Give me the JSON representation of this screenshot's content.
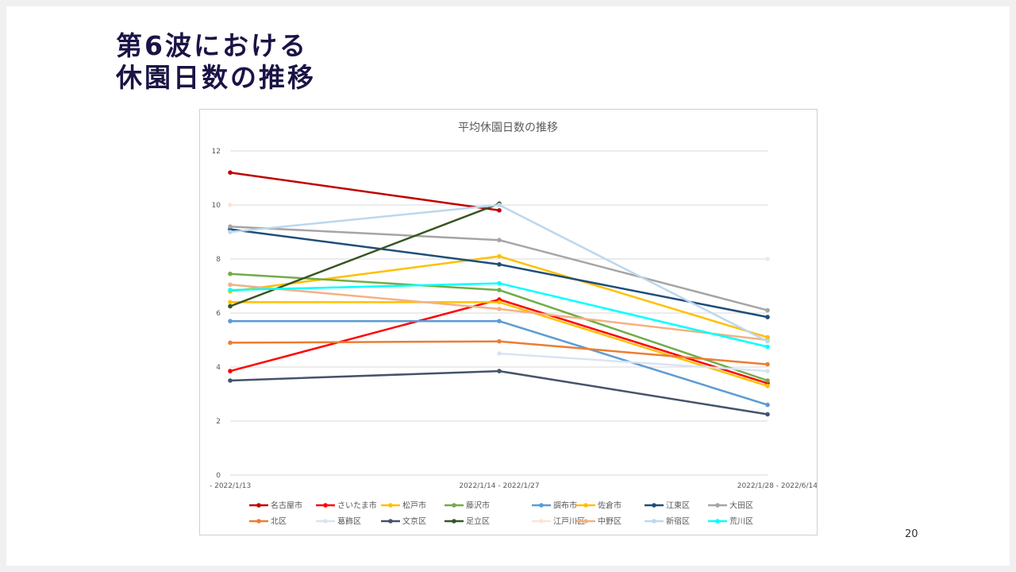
{
  "slide": {
    "title_line1": "第6波における",
    "title_line2": "休園日数の推移",
    "page_number": "20"
  },
  "chart_data": {
    "type": "line",
    "title": "平均休園日数の推移",
    "categories": [
      "- 2022/1/13",
      "2022/1/14 - 2022/1/27",
      "2022/1/28 - 2022/6/14"
    ],
    "y_ticks": [
      "0",
      "2",
      "4",
      "6",
      "8",
      "10",
      "12"
    ],
    "ylim": [
      0,
      12
    ],
    "grid": true,
    "legend_position": "bottom",
    "series": [
      {
        "name": "名古屋市",
        "color": "#c00000",
        "values": [
          11.2,
          9.8,
          null
        ]
      },
      {
        "name": "さいたま市",
        "color": "#ff0000",
        "values": [
          3.85,
          6.5,
          3.4
        ]
      },
      {
        "name": "松戸市",
        "color": "#ffc000",
        "values": [
          6.8,
          8.1,
          5.1
        ]
      },
      {
        "name": "藤沢市",
        "color": "#70ad47",
        "values": [
          7.45,
          6.85,
          3.5
        ]
      },
      {
        "name": "調布市",
        "color": "#5b9bd5",
        "values": [
          5.7,
          5.7,
          2.6
        ]
      },
      {
        "name": "佐倉市",
        "color": "#ffc000",
        "values": [
          6.4,
          6.4,
          3.3
        ]
      },
      {
        "name": "江東区",
        "color": "#1f4e79",
        "values": [
          9.1,
          7.8,
          5.85
        ]
      },
      {
        "name": "大田区",
        "color": "#a5a5a5",
        "values": [
          9.2,
          8.7,
          6.1
        ]
      },
      {
        "name": "北区",
        "color": "#ed7d31",
        "values": [
          4.9,
          4.95,
          4.1
        ]
      },
      {
        "name": "葛飾区",
        "color": "#dae3f3",
        "values": [
          null,
          4.5,
          3.85
        ]
      },
      {
        "name": "文京区",
        "color": "#44546a",
        "values": [
          3.5,
          3.85,
          2.25
        ]
      },
      {
        "name": "足立区",
        "color": "#375623",
        "values": [
          6.25,
          10.05,
          null
        ]
      },
      {
        "name": "江戸川区",
        "color": "#fbe5d6",
        "values": [
          10.0,
          null,
          8.0
        ]
      },
      {
        "name": "中野区",
        "color": "#f4b183",
        "values": [
          7.05,
          6.15,
          5.0
        ]
      },
      {
        "name": "新宿区",
        "color": "#bdd7ee",
        "values": [
          9.0,
          10.0,
          4.95
        ]
      },
      {
        "name": "荒川区",
        "color": "#00ffff",
        "values": [
          6.85,
          7.1,
          4.75
        ]
      }
    ]
  }
}
